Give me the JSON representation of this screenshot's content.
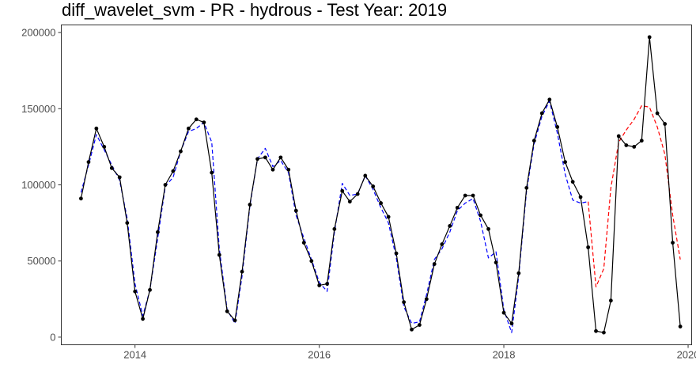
{
  "chart_data": {
    "type": "line",
    "title": "diff_wavelet_svm - PR - hydrous - Test Year: 2019",
    "xlabel": "",
    "ylabel": "",
    "xlim": [
      "2013-03-15",
      "2020-01-15"
    ],
    "ylim": [
      -5000,
      205000
    ],
    "x_ticks": [
      "2014-01-01",
      "2016-01-01",
      "2018-01-01",
      "2020-01-01"
    ],
    "x_tick_labels": [
      "2014",
      "2016",
      "2018",
      "2020"
    ],
    "y_ticks": [
      0,
      50000,
      100000,
      150000,
      200000
    ],
    "y_tick_labels": [
      "0",
      "50000",
      "100000",
      "150000",
      "200000"
    ],
    "grid": false,
    "series": [
      {
        "style": "solid-with-markers",
        "color": "#000000",
        "x": [
          "2013-06-01",
          "2013-07-01",
          "2013-08-01",
          "2013-09-01",
          "2013-10-01",
          "2013-11-01",
          "2013-12-01",
          "2014-01-01",
          "2014-02-01",
          "2014-03-01",
          "2014-04-01",
          "2014-05-01",
          "2014-06-01",
          "2014-07-01",
          "2014-08-01",
          "2014-09-01",
          "2014-10-01",
          "2014-11-01",
          "2014-12-01",
          "2015-01-01",
          "2015-02-01",
          "2015-03-01",
          "2015-04-01",
          "2015-05-01",
          "2015-06-01",
          "2015-07-01",
          "2015-08-01",
          "2015-09-01",
          "2015-10-01",
          "2015-11-01",
          "2015-12-01",
          "2016-01-01",
          "2016-02-01",
          "2016-03-01",
          "2016-04-01",
          "2016-05-01",
          "2016-06-01",
          "2016-07-01",
          "2016-08-01",
          "2016-09-01",
          "2016-10-01",
          "2016-11-01",
          "2016-12-01",
          "2017-01-01",
          "2017-02-01",
          "2017-03-01",
          "2017-04-01",
          "2017-05-01",
          "2017-06-01",
          "2017-07-01",
          "2017-08-01",
          "2017-09-01",
          "2017-10-01",
          "2017-11-01",
          "2017-12-01",
          "2018-01-01",
          "2018-02-01",
          "2018-03-01",
          "2018-04-01",
          "2018-05-01",
          "2018-06-01",
          "2018-07-01",
          "2018-08-01",
          "2018-09-01",
          "2018-10-01",
          "2018-11-01",
          "2018-12-01",
          "2019-01-01",
          "2019-02-01",
          "2019-03-01",
          "2019-04-01",
          "2019-05-01",
          "2019-06-01",
          "2019-07-01",
          "2019-08-01",
          "2019-09-01",
          "2019-10-01",
          "2019-11-01",
          "2019-12-01"
        ],
        "y": [
          91000,
          115000,
          137000,
          125000,
          111000,
          105000,
          75000,
          30000,
          12000,
          31000,
          69000,
          100000,
          109000,
          122000,
          137000,
          143000,
          141000,
          108000,
          54000,
          17000,
          11000,
          43000,
          87000,
          117000,
          118000,
          110000,
          118000,
          110000,
          83000,
          62000,
          50000,
          34000,
          35000,
          71000,
          96000,
          89000,
          94000,
          106000,
          99000,
          88000,
          79000,
          55000,
          23000,
          5000,
          8000,
          25000,
          48000,
          61000,
          73000,
          85000,
          93000,
          93000,
          80000,
          71000,
          49000,
          16000,
          9000,
          42000,
          98000,
          129000,
          147000,
          156000,
          138000,
          115000,
          102000,
          92000,
          59000,
          4000,
          3000,
          24000,
          132000,
          126000,
          125000,
          129000,
          197000,
          147000,
          140000,
          62000,
          7000
        ]
      },
      {
        "style": "dashed",
        "color": "#0000ff",
        "x": [
          "2013-06-01",
          "2013-07-01",
          "2013-08-01",
          "2013-09-01",
          "2013-10-01",
          "2013-11-01",
          "2013-12-01",
          "2014-01-01",
          "2014-02-01",
          "2014-03-01",
          "2014-04-01",
          "2014-05-01",
          "2014-06-01",
          "2014-07-01",
          "2014-08-01",
          "2014-09-01",
          "2014-10-01",
          "2014-11-01",
          "2014-12-01",
          "2015-01-01",
          "2015-02-01",
          "2015-03-01",
          "2015-04-01",
          "2015-05-01",
          "2015-06-01",
          "2015-07-01",
          "2015-08-01",
          "2015-09-01",
          "2015-10-01",
          "2015-11-01",
          "2015-12-01",
          "2016-01-01",
          "2016-02-01",
          "2016-03-01",
          "2016-04-01",
          "2016-05-01",
          "2016-06-01",
          "2016-07-01",
          "2016-08-01",
          "2016-09-01",
          "2016-10-01",
          "2016-11-01",
          "2016-12-01",
          "2017-01-01",
          "2017-02-01",
          "2017-03-01",
          "2017-04-01",
          "2017-05-01",
          "2017-06-01",
          "2017-07-01",
          "2017-08-01",
          "2017-09-01",
          "2017-10-01",
          "2017-11-01",
          "2017-12-01",
          "2018-01-01",
          "2018-02-01",
          "2018-03-01",
          "2018-04-01",
          "2018-05-01",
          "2018-06-01",
          "2018-07-01",
          "2018-08-01",
          "2018-09-01",
          "2018-10-01",
          "2018-11-01",
          "2018-12-01"
        ],
        "y": [
          95000,
          113000,
          133000,
          123000,
          113000,
          103000,
          78000,
          35000,
          14000,
          31000,
          65000,
          99000,
          105000,
          122000,
          135000,
          137000,
          141000,
          128000,
          58000,
          18000,
          9000,
          40000,
          86000,
          117000,
          124000,
          112000,
          116000,
          108000,
          80000,
          65000,
          51000,
          36000,
          30000,
          69000,
          101000,
          93000,
          94000,
          106000,
          97000,
          85000,
          75000,
          52000,
          20000,
          9000,
          10000,
          28000,
          51000,
          58000,
          69000,
          83000,
          88000,
          91000,
          76000,
          52000,
          56000,
          18000,
          3000,
          40000,
          96000,
          127000,
          145000,
          155000,
          134000,
          107000,
          90000,
          88000,
          89000
        ]
      },
      {
        "style": "dashed",
        "color": "#ff0000",
        "x": [
          "2018-12-01",
          "2019-01-01",
          "2019-02-01",
          "2019-03-01",
          "2019-04-01",
          "2019-05-01",
          "2019-06-01",
          "2019-07-01",
          "2019-08-01",
          "2019-09-01",
          "2019-10-01",
          "2019-11-01",
          "2019-12-01"
        ],
        "y": [
          89000,
          33000,
          45000,
          98000,
          128000,
          136000,
          143000,
          152000,
          151000,
          138000,
          120000,
          80000,
          51000
        ]
      }
    ]
  }
}
